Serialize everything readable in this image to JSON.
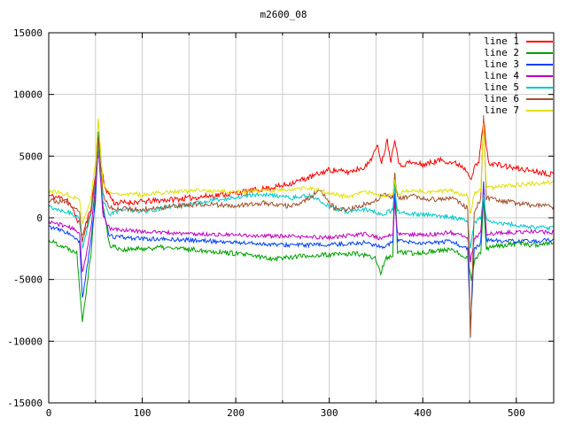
{
  "chart_data": {
    "type": "line",
    "title": "m2600_08",
    "xlabel": "",
    "ylabel": "",
    "xlim": [
      0,
      540
    ],
    "ylim": [
      -15000,
      15000
    ],
    "x_ticks": [
      0,
      100,
      200,
      300,
      400,
      500
    ],
    "y_ticks": [
      -15000,
      -10000,
      -5000,
      0,
      5000,
      10000,
      15000
    ],
    "x_minor_grid_step": 50,
    "grid": true,
    "legend_position": "top-right",
    "background": "#ffffff",
    "grid_color": "#cccccc",
    "axis_color": "#000000",
    "series": [
      {
        "name": "line 1",
        "color": "#ff0000",
        "noise": 230,
        "seed": 11,
        "keypoints": [
          [
            0,
            1800
          ],
          [
            20,
            1500
          ],
          [
            33,
            -500
          ],
          [
            36,
            -1500
          ],
          [
            45,
            800
          ],
          [
            50,
            3500
          ],
          [
            53,
            5200
          ],
          [
            60,
            2500
          ],
          [
            70,
            1200
          ],
          [
            100,
            1300
          ],
          [
            150,
            1600
          ],
          [
            200,
            2000
          ],
          [
            250,
            2600
          ],
          [
            280,
            3300
          ],
          [
            300,
            3900
          ],
          [
            320,
            3700
          ],
          [
            340,
            4200
          ],
          [
            352,
            5800
          ],
          [
            356,
            4500
          ],
          [
            362,
            6300
          ],
          [
            366,
            4600
          ],
          [
            370,
            6500
          ],
          [
            375,
            4200
          ],
          [
            385,
            4500
          ],
          [
            400,
            4300
          ],
          [
            420,
            4700
          ],
          [
            440,
            4300
          ],
          [
            448,
            3800
          ],
          [
            452,
            3200
          ],
          [
            456,
            4200
          ],
          [
            460,
            4500
          ],
          [
            465,
            8000
          ],
          [
            470,
            4500
          ],
          [
            480,
            4300
          ],
          [
            500,
            4000
          ],
          [
            520,
            3800
          ],
          [
            540,
            3500
          ]
        ]
      },
      {
        "name": "line 2",
        "color": "#00a000",
        "noise": 200,
        "seed": 22,
        "keypoints": [
          [
            0,
            -1800
          ],
          [
            15,
            -2300
          ],
          [
            30,
            -2800
          ],
          [
            36,
            -8300
          ],
          [
            45,
            -3000
          ],
          [
            50,
            2000
          ],
          [
            53,
            7000
          ],
          [
            58,
            1000
          ],
          [
            65,
            -2200
          ],
          [
            80,
            -2600
          ],
          [
            120,
            -2400
          ],
          [
            160,
            -2600
          ],
          [
            200,
            -2900
          ],
          [
            240,
            -3300
          ],
          [
            270,
            -3100
          ],
          [
            300,
            -3000
          ],
          [
            330,
            -2900
          ],
          [
            350,
            -3300
          ],
          [
            355,
            -4600
          ],
          [
            360,
            -3300
          ],
          [
            368,
            -3000
          ],
          [
            370,
            3800
          ],
          [
            373,
            -2800
          ],
          [
            390,
            -2900
          ],
          [
            410,
            -2700
          ],
          [
            430,
            -2600
          ],
          [
            448,
            -3200
          ],
          [
            452,
            -5000
          ],
          [
            456,
            -3300
          ],
          [
            462,
            -2800
          ],
          [
            465,
            1500
          ],
          [
            468,
            -2500
          ],
          [
            480,
            -2300
          ],
          [
            500,
            -2100
          ],
          [
            520,
            -2200
          ],
          [
            540,
            -2000
          ]
        ]
      },
      {
        "name": "line 3",
        "color": "#0040ff",
        "noise": 170,
        "seed": 33,
        "keypoints": [
          [
            0,
            -700
          ],
          [
            20,
            -1200
          ],
          [
            33,
            -2000
          ],
          [
            36,
            -6500
          ],
          [
            45,
            -2000
          ],
          [
            50,
            1500
          ],
          [
            53,
            6200
          ],
          [
            58,
            500
          ],
          [
            65,
            -1500
          ],
          [
            100,
            -1700
          ],
          [
            150,
            -1800
          ],
          [
            200,
            -2000
          ],
          [
            250,
            -2200
          ],
          [
            300,
            -2200
          ],
          [
            340,
            -2000
          ],
          [
            355,
            -2400
          ],
          [
            368,
            -2000
          ],
          [
            370,
            1800
          ],
          [
            373,
            -1900
          ],
          [
            400,
            -2100
          ],
          [
            430,
            -1900
          ],
          [
            448,
            -2500
          ],
          [
            451,
            -9000
          ],
          [
            455,
            -2600
          ],
          [
            462,
            -2000
          ],
          [
            465,
            3000
          ],
          [
            468,
            -1800
          ],
          [
            490,
            -1900
          ],
          [
            520,
            -1900
          ],
          [
            540,
            -1800
          ]
        ]
      },
      {
        "name": "line 4",
        "color": "#c000c0",
        "noise": 160,
        "seed": 44,
        "keypoints": [
          [
            0,
            -300
          ],
          [
            20,
            -700
          ],
          [
            33,
            -1200
          ],
          [
            36,
            -4500
          ],
          [
            45,
            -1000
          ],
          [
            50,
            2500
          ],
          [
            53,
            5800
          ],
          [
            58,
            300
          ],
          [
            65,
            -900
          ],
          [
            100,
            -1100
          ],
          [
            150,
            -1300
          ],
          [
            200,
            -1400
          ],
          [
            250,
            -1500
          ],
          [
            300,
            -1600
          ],
          [
            340,
            -1300
          ],
          [
            355,
            -1700
          ],
          [
            368,
            -1300
          ],
          [
            370,
            1200
          ],
          [
            373,
            -1300
          ],
          [
            400,
            -1400
          ],
          [
            430,
            -1200
          ],
          [
            448,
            -1600
          ],
          [
            451,
            -3500
          ],
          [
            455,
            -1700
          ],
          [
            462,
            -1200
          ],
          [
            465,
            2500
          ],
          [
            468,
            -1300
          ],
          [
            490,
            -1200
          ],
          [
            520,
            -1100
          ],
          [
            540,
            -1200
          ]
        ]
      },
      {
        "name": "line 5",
        "color": "#00c8c8",
        "noise": 180,
        "seed": 55,
        "keypoints": [
          [
            0,
            900
          ],
          [
            20,
            500
          ],
          [
            33,
            0
          ],
          [
            36,
            -2500
          ],
          [
            45,
            200
          ],
          [
            50,
            3000
          ],
          [
            53,
            6000
          ],
          [
            58,
            1500
          ],
          [
            65,
            300
          ],
          [
            80,
            700
          ],
          [
            100,
            500
          ],
          [
            130,
            900
          ],
          [
            160,
            1200
          ],
          [
            200,
            1700
          ],
          [
            230,
            1900
          ],
          [
            260,
            1600
          ],
          [
            280,
            1800
          ],
          [
            300,
            900
          ],
          [
            320,
            500
          ],
          [
            340,
            700
          ],
          [
            355,
            300
          ],
          [
            368,
            600
          ],
          [
            370,
            2500
          ],
          [
            373,
            500
          ],
          [
            390,
            300
          ],
          [
            410,
            200
          ],
          [
            430,
            100
          ],
          [
            448,
            -300
          ],
          [
            451,
            -2500
          ],
          [
            455,
            -400
          ],
          [
            462,
            0
          ],
          [
            465,
            2000
          ],
          [
            468,
            -200
          ],
          [
            490,
            -500
          ],
          [
            520,
            -800
          ],
          [
            540,
            -800
          ]
        ]
      },
      {
        "name": "line 6",
        "color": "#a0522d",
        "noise": 200,
        "seed": 66,
        "keypoints": [
          [
            0,
            1500
          ],
          [
            20,
            1200
          ],
          [
            33,
            600
          ],
          [
            36,
            -2000
          ],
          [
            45,
            500
          ],
          [
            50,
            3200
          ],
          [
            53,
            6500
          ],
          [
            58,
            1800
          ],
          [
            65,
            800
          ],
          [
            100,
            700
          ],
          [
            130,
            900
          ],
          [
            160,
            1100
          ],
          [
            200,
            1000
          ],
          [
            230,
            1200
          ],
          [
            260,
            900
          ],
          [
            280,
            1700
          ],
          [
            290,
            2300
          ],
          [
            300,
            1200
          ],
          [
            310,
            600
          ],
          [
            330,
            900
          ],
          [
            350,
            1400
          ],
          [
            360,
            2000
          ],
          [
            368,
            1500
          ],
          [
            370,
            3500
          ],
          [
            373,
            1600
          ],
          [
            390,
            1800
          ],
          [
            410,
            1500
          ],
          [
            430,
            1600
          ],
          [
            448,
            800
          ],
          [
            451,
            -9700
          ],
          [
            455,
            500
          ],
          [
            462,
            1500
          ],
          [
            465,
            8300
          ],
          [
            468,
            1600
          ],
          [
            490,
            1300
          ],
          [
            520,
            1000
          ],
          [
            540,
            900
          ]
        ]
      },
      {
        "name": "line 7",
        "color": "#e0e000",
        "noise": 170,
        "seed": 77,
        "keypoints": [
          [
            0,
            2200
          ],
          [
            20,
            1900
          ],
          [
            33,
            1500
          ],
          [
            36,
            -500
          ],
          [
            45,
            1500
          ],
          [
            50,
            4500
          ],
          [
            53,
            8000
          ],
          [
            58,
            2800
          ],
          [
            65,
            2000
          ],
          [
            100,
            1900
          ],
          [
            130,
            2100
          ],
          [
            160,
            2200
          ],
          [
            200,
            2100
          ],
          [
            230,
            2200
          ],
          [
            260,
            2300
          ],
          [
            280,
            2400
          ],
          [
            300,
            2000
          ],
          [
            320,
            1700
          ],
          [
            340,
            2100
          ],
          [
            355,
            1700
          ],
          [
            368,
            2000
          ],
          [
            370,
            3000
          ],
          [
            373,
            2000
          ],
          [
            390,
            2200
          ],
          [
            410,
            2100
          ],
          [
            430,
            2200
          ],
          [
            448,
            1800
          ],
          [
            451,
            300
          ],
          [
            455,
            1900
          ],
          [
            462,
            2200
          ],
          [
            465,
            7700
          ],
          [
            468,
            2400
          ],
          [
            490,
            2600
          ],
          [
            520,
            2800
          ],
          [
            540,
            2900
          ]
        ]
      }
    ]
  }
}
